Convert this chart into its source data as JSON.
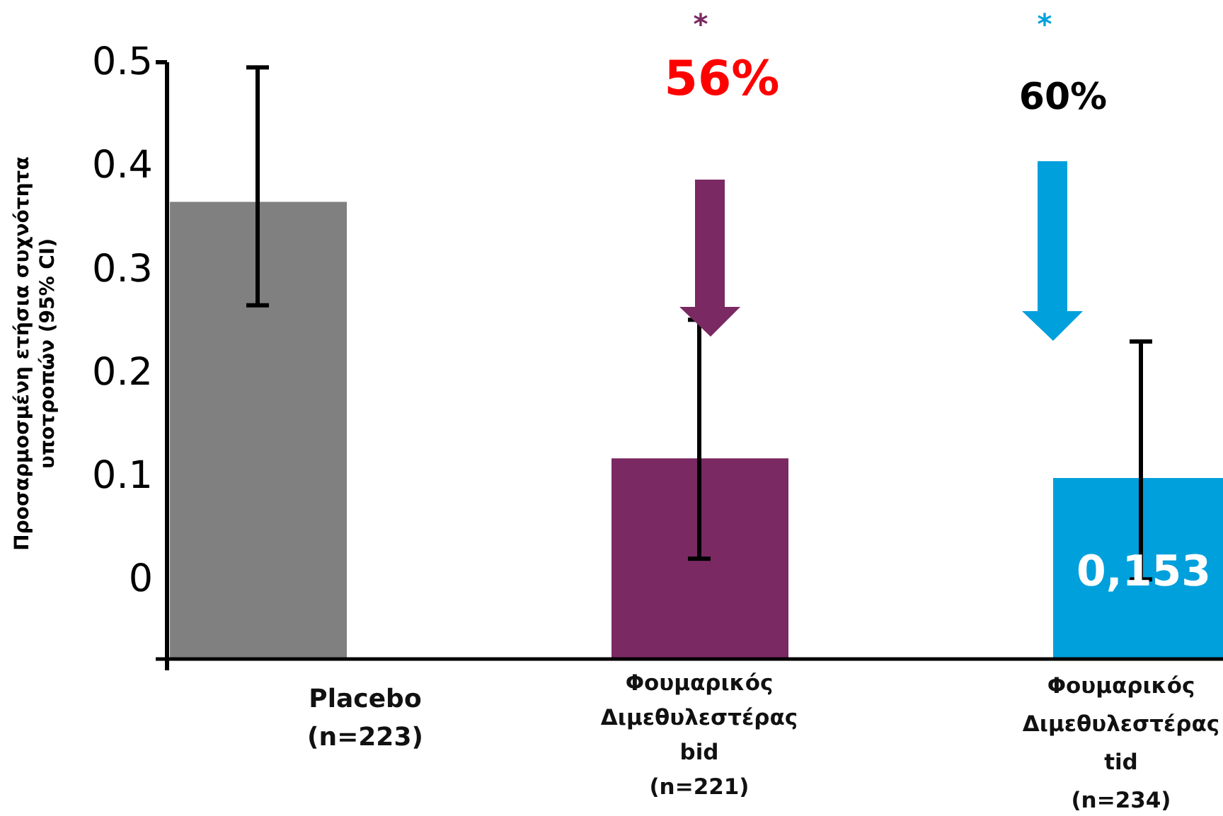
{
  "chart_data": {
    "type": "bar",
    "ylabel": "Προσαρμοσμένη ετήσια συχνότητα υποτροπών (95% CI)",
    "categories": [
      "Placebo\n(n=223)",
      "Φουμαρικός\nΔιμεθυλεστέρας\nbid\n(n=221)",
      "Φουμαρικός\nΔιμεθυλεστέρας\ntid\n(n=234)"
    ],
    "values": [
      0.442,
      0.194,
      0.175
    ],
    "base": [
      -0.077,
      -0.077,
      -0.077
    ],
    "colors": [
      "#808080",
      "#7a2962",
      "#00a0dc"
    ],
    "errors": [
      [
        0.265,
        0.495
      ],
      [
        0.02,
        0.251
      ],
      [
        0.0,
        0.23
      ]
    ],
    "ylim": [
      -0.077,
      0.5
    ],
    "yticks": [
      {
        "value": -0.077,
        "label": null
      },
      0,
      0.1,
      0.2,
      0.3,
      0.4,
      0.5
    ],
    "annotations": [
      "*",
      "56%",
      "*",
      "60%",
      "0,153"
    ]
  }
}
